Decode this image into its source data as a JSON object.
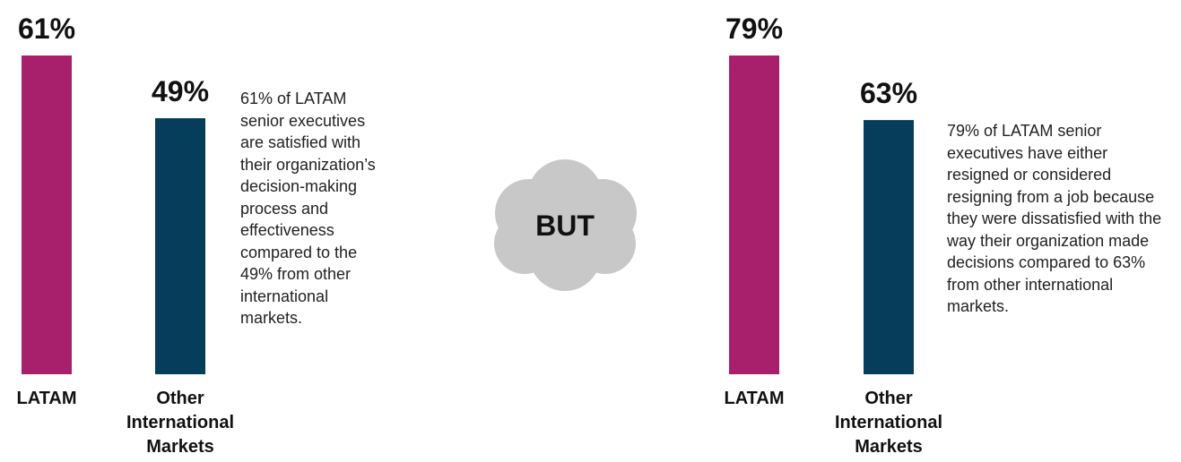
{
  "connector": "BUT",
  "chart_data": [
    {
      "type": "bar",
      "categories": [
        "LATAM",
        "Other International Markets"
      ],
      "values": [
        61,
        49
      ],
      "value_labels": [
        "61%",
        "49%"
      ],
      "colors": [
        "#a8206c",
        "#063d5a"
      ],
      "annotation": "61% of LATAM senior executives are satisfied with their organization’s decision-making process and effectiveness compared to the 49% from other international markets."
    },
    {
      "type": "bar",
      "categories": [
        "LATAM",
        "Other International Markets"
      ],
      "values": [
        79,
        63
      ],
      "value_labels": [
        "79%",
        "63%"
      ],
      "colors": [
        "#a8206c",
        "#063d5a"
      ],
      "annotation": "79% of LATAM senior executives have either resigned or considered resigning from a job because they were dissatisfied with the way their organization made decisions compared to 63% from other international markets."
    }
  ]
}
